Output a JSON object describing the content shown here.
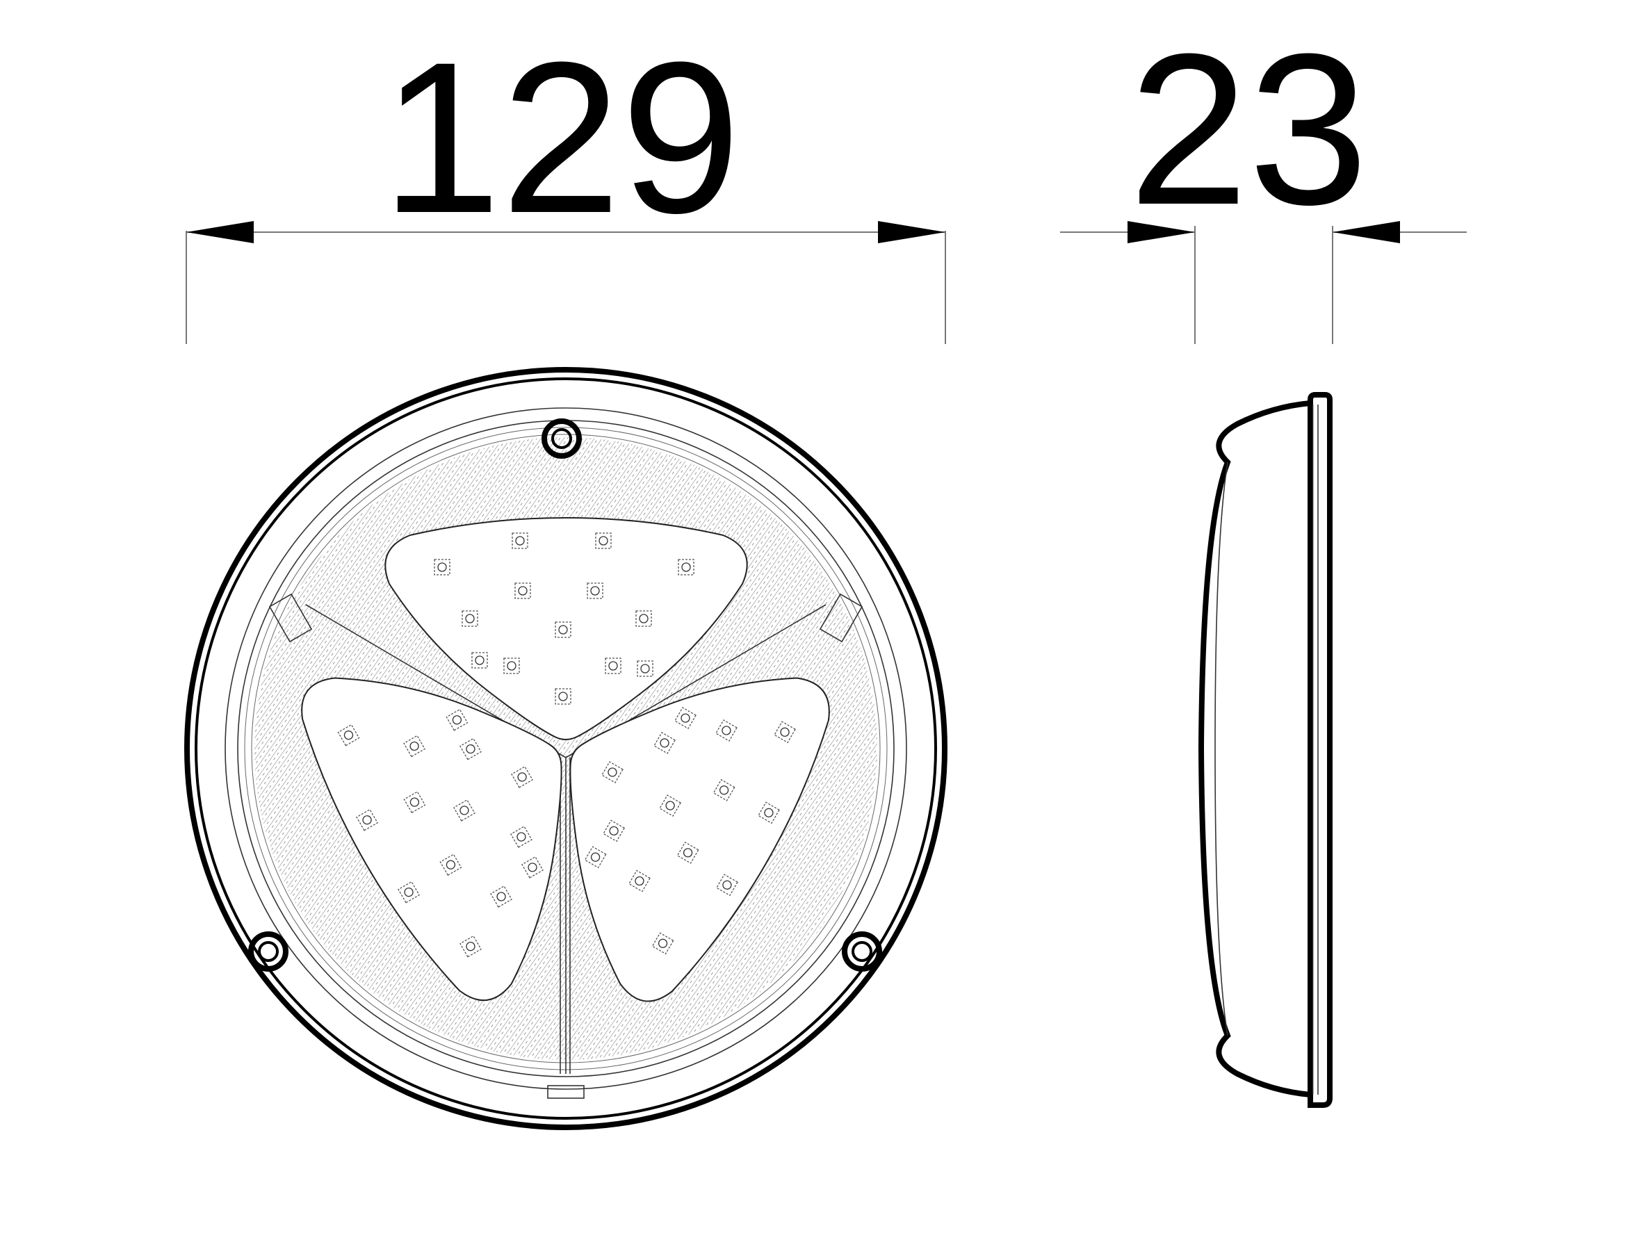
{
  "dimensions": {
    "diameter_label": "129",
    "depth_label": "23"
  },
  "front_view": {
    "led_clusters": 3,
    "leds_per_cluster": 14,
    "mounting_screws": 3
  },
  "colors": {
    "line": "#000000",
    "background": "#ffffff"
  }
}
